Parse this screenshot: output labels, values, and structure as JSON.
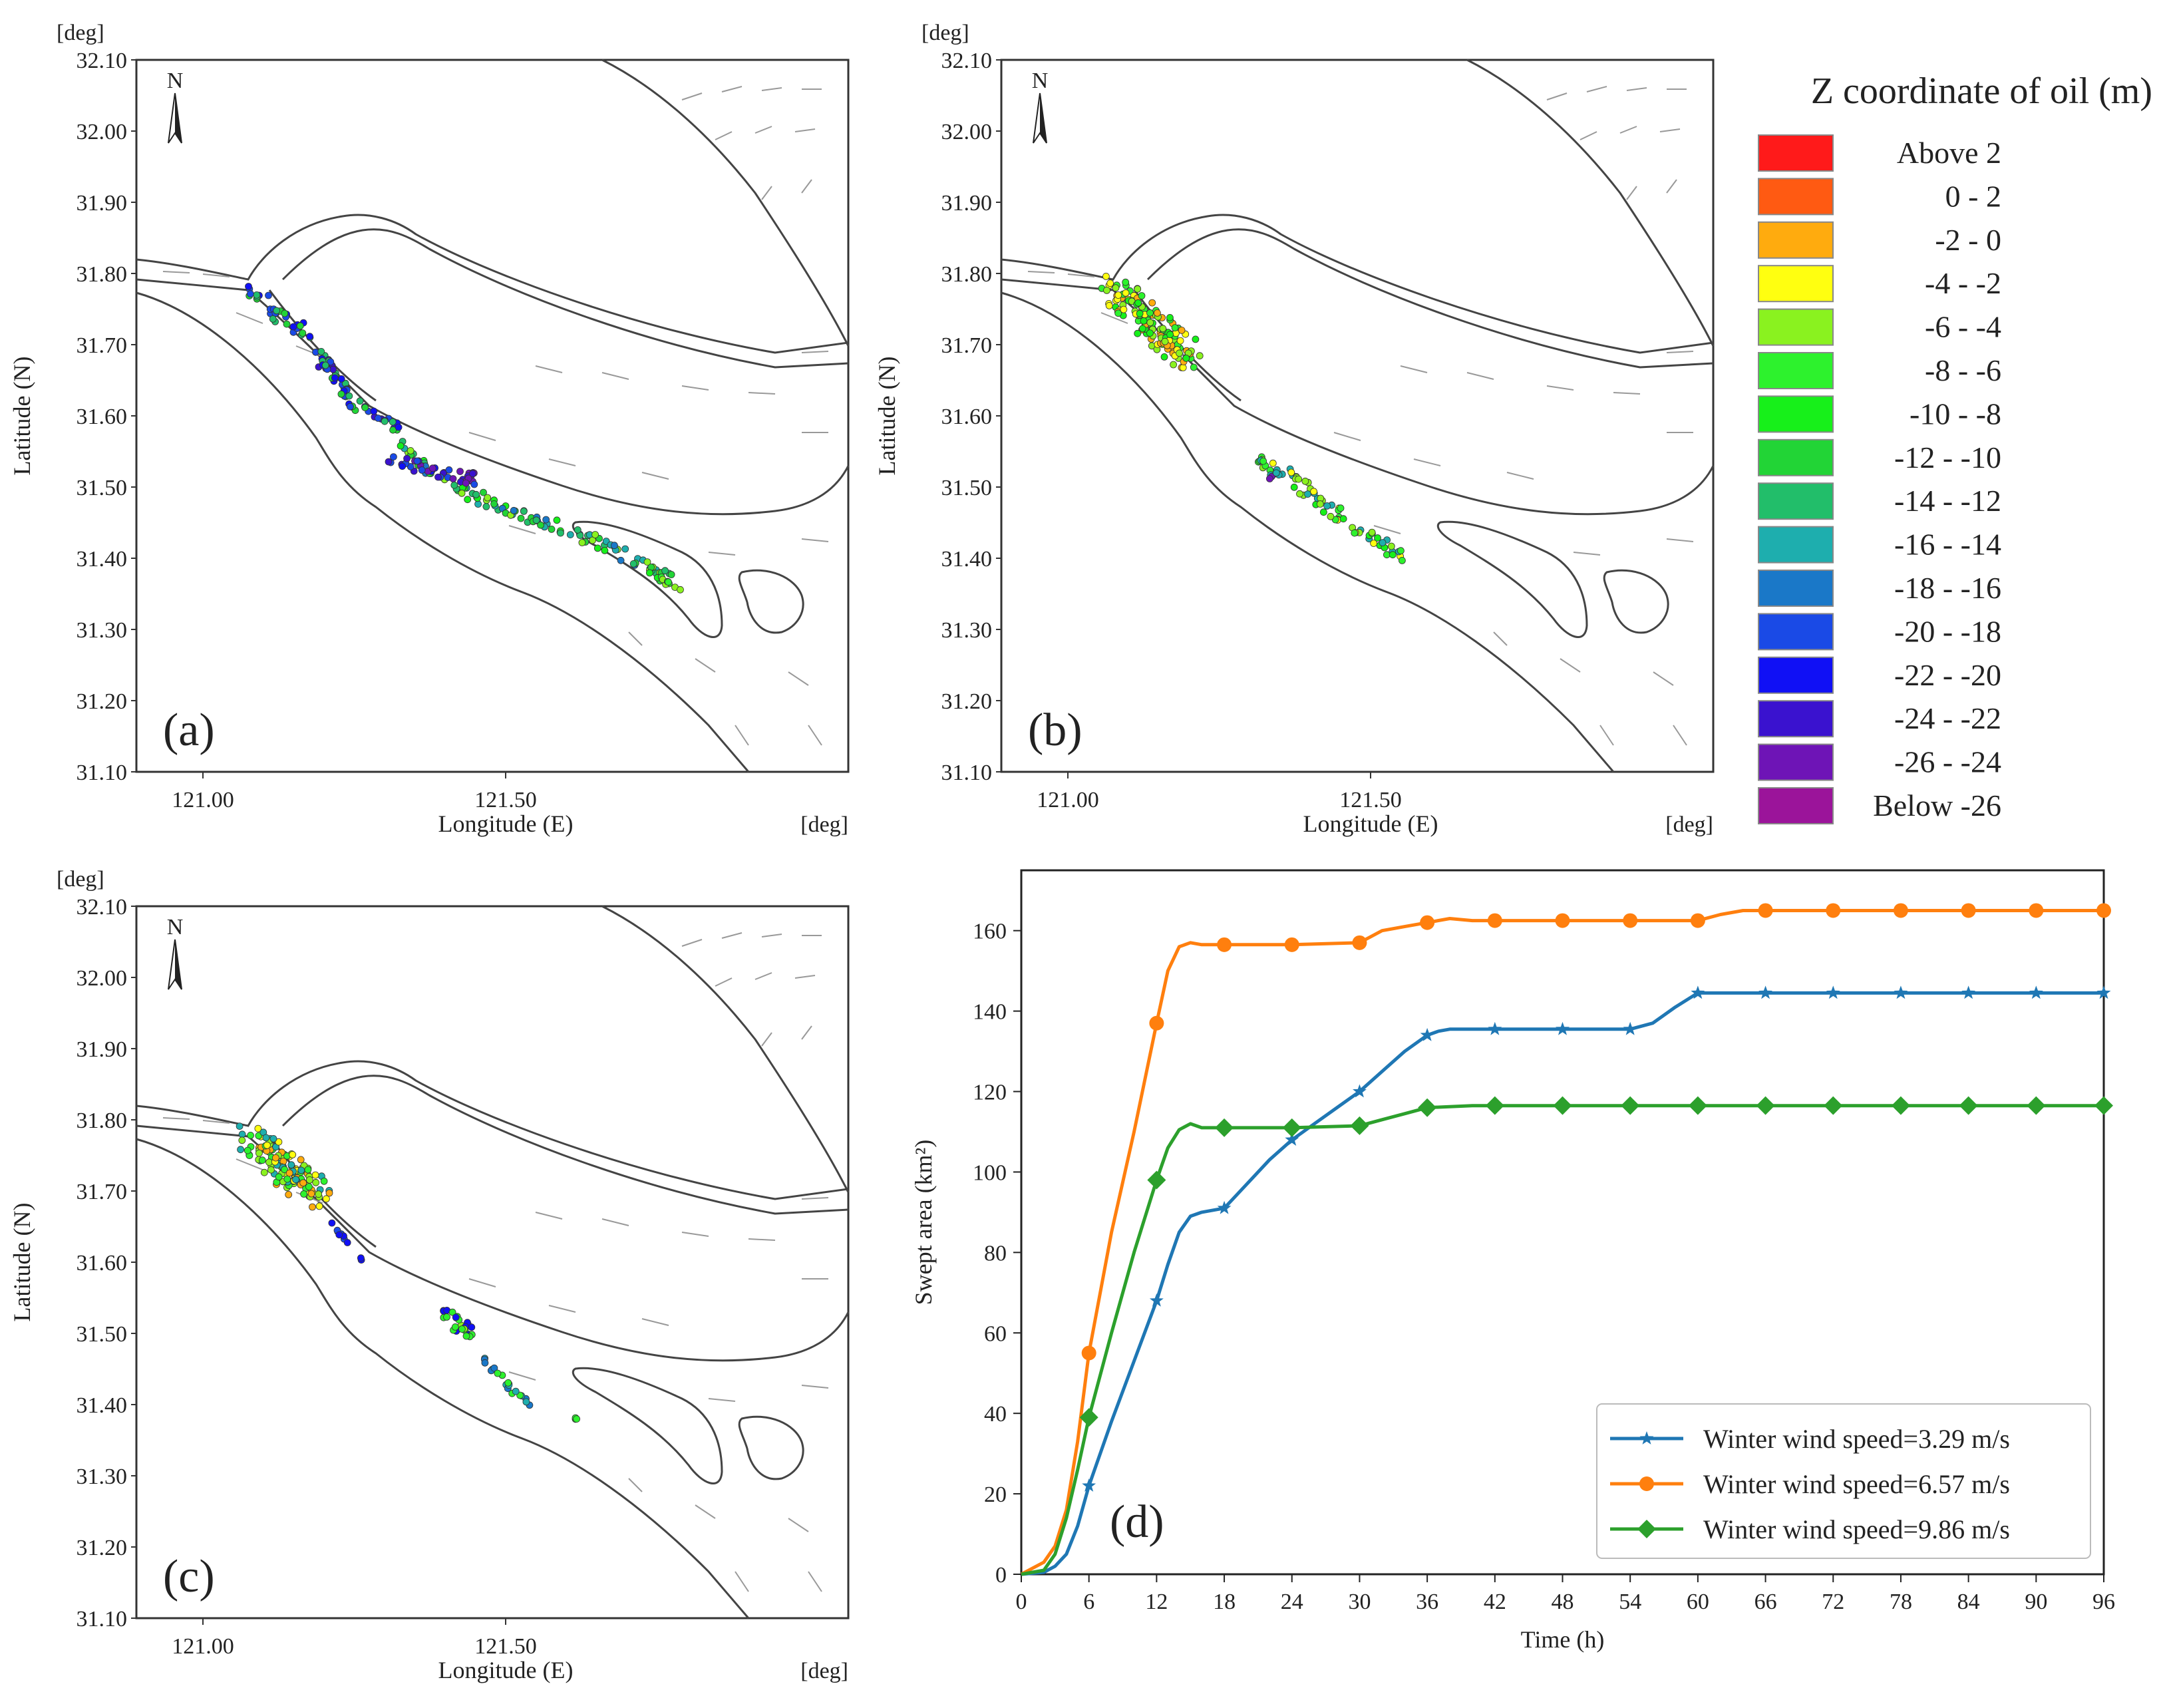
{
  "maps": {
    "lat_ticks": [
      "32.10",
      "32.00",
      "31.90",
      "31.80",
      "31.70",
      "31.60",
      "31.50",
      "31.40",
      "31.30",
      "31.20",
      "31.10"
    ],
    "lon_ticks": [
      "121.00",
      "121.50"
    ],
    "deg_label": "[deg]",
    "xlabel": "Longitude (E)",
    "ylabel": "Latitude (N)",
    "north": "N",
    "panels": [
      {
        "label": "(a)"
      },
      {
        "label": "(b)"
      },
      {
        "label": "(c)"
      }
    ]
  },
  "legend": {
    "title": "Z coordinate of oil (m)",
    "items": [
      {
        "label": "Above    2",
        "color": "#ff1a1a"
      },
      {
        "label": "0 -    2",
        "color": "#ff5a12"
      },
      {
        "label": "-2 -    0",
        "color": "#ffab0e"
      },
      {
        "label": "-4 -  -2",
        "color": "#ffff10"
      },
      {
        "label": "-6 -  -4",
        "color": "#8af21f"
      },
      {
        "label": "-8 -  -6",
        "color": "#2df22d"
      },
      {
        "label": "-10 -  -8",
        "color": "#17f01a"
      },
      {
        "label": "-12 - -10",
        "color": "#22d436"
      },
      {
        "label": "-14 - -12",
        "color": "#22be6a"
      },
      {
        "label": "-16 - -14",
        "color": "#1eaeae"
      },
      {
        "label": "-18 - -16",
        "color": "#1a78c8"
      },
      {
        "label": "-20 - -18",
        "color": "#1a4ae6"
      },
      {
        "label": "-22 - -20",
        "color": "#1010f5"
      },
      {
        "label": "-24 - -22",
        "color": "#3a12cf"
      },
      {
        "label": "-26 - -24",
        "color": "#6e14b6"
      },
      {
        "label": "Below -26",
        "color": "#9b149a"
      }
    ]
  },
  "chart_data": {
    "type": "line",
    "panel_label": "(d)",
    "xlabel": "Time (h)",
    "ylabel": "Swept area (km²)",
    "xlim": [
      0,
      96
    ],
    "ylim": [
      0,
      175
    ],
    "xticks": [
      0,
      6,
      12,
      18,
      24,
      30,
      36,
      42,
      48,
      54,
      60,
      66,
      72,
      78,
      84,
      90,
      96
    ],
    "yticks": [
      0,
      20,
      40,
      60,
      80,
      100,
      120,
      140,
      160
    ],
    "series": [
      {
        "name": "Winter wind speed=3.29 m/s",
        "color": "#1f77b4",
        "marker": "star",
        "x": [
          0,
          2,
          3,
          4,
          5,
          6,
          8,
          10,
          12,
          13,
          14,
          15,
          16,
          18,
          20,
          22,
          24,
          26,
          28,
          30,
          32,
          34,
          36,
          37,
          38,
          42,
          48,
          54,
          56,
          58,
          60,
          66,
          72,
          78,
          84,
          90,
          96
        ],
        "y": [
          0,
          0.5,
          2,
          5,
          12,
          22,
          38,
          53,
          68,
          77,
          85,
          89,
          90,
          91,
          97,
          103,
          108,
          112,
          116,
          120,
          125,
          130,
          134,
          135,
          135.5,
          135.5,
          135.5,
          135.5,
          137,
          141,
          144.5,
          144.5,
          144.5,
          144.5,
          144.5,
          144.5,
          144.5
        ],
        "marker_x": [
          6,
          12,
          18,
          24,
          30,
          36,
          42,
          48,
          54,
          60,
          66,
          72,
          78,
          84,
          90,
          96
        ],
        "marker_y": [
          22,
          68,
          91,
          108,
          120,
          134,
          135.5,
          135.5,
          135.5,
          144.5,
          144.5,
          144.5,
          144.5,
          144.5,
          144.5,
          144.5
        ]
      },
      {
        "name": "Winter wind speed=6.57 m/s",
        "color": "#ff7f0e",
        "marker": "circle",
        "x": [
          0,
          1,
          2,
          3,
          4,
          5,
          6,
          8,
          10,
          12,
          13,
          14,
          15,
          16,
          18,
          24,
          30,
          32,
          34,
          36,
          38,
          40,
          42,
          48,
          54,
          60,
          62,
          64,
          66,
          72,
          78,
          84,
          90,
          96
        ],
        "y": [
          0,
          1.5,
          3,
          7,
          16,
          33,
          55,
          85,
          110,
          137,
          150,
          156,
          157,
          156.5,
          156.5,
          156.5,
          157,
          160,
          161,
          162,
          163,
          162.5,
          162.5,
          162.5,
          162.5,
          162.5,
          164,
          165,
          165,
          165,
          165,
          165,
          165,
          165
        ],
        "marker_x": [
          6,
          12,
          18,
          24,
          30,
          36,
          42,
          48,
          54,
          60,
          66,
          72,
          78,
          84,
          90,
          96
        ],
        "marker_y": [
          55,
          137,
          156.5,
          156.5,
          157,
          162,
          162.5,
          162.5,
          162.5,
          162.5,
          165,
          165,
          165,
          165,
          165,
          165
        ]
      },
      {
        "name": "Winter wind speed=9.86 m/s",
        "color": "#2ca02c",
        "marker": "diamond",
        "x": [
          0,
          2,
          3,
          4,
          5,
          6,
          8,
          10,
          12,
          13,
          14,
          15,
          16,
          18,
          24,
          30,
          32,
          34,
          36,
          40,
          42,
          48,
          54,
          60,
          66,
          72,
          78,
          84,
          90,
          96
        ],
        "y": [
          0,
          1,
          5,
          14,
          26,
          39,
          60,
          80,
          98,
          106,
          110.5,
          112,
          111,
          111,
          111,
          111.5,
          113,
          114.5,
          116,
          116.5,
          116.5,
          116.5,
          116.5,
          116.5,
          116.5,
          116.5,
          116.5,
          116.5,
          116.5,
          116.5
        ],
        "marker_x": [
          6,
          12,
          18,
          24,
          30,
          36,
          42,
          48,
          54,
          60,
          66,
          72,
          78,
          84,
          90,
          96
        ],
        "marker_y": [
          39,
          98,
          111,
          111,
          111.5,
          116,
          116.5,
          116.5,
          116.5,
          116.5,
          116.5,
          116.5,
          116.5,
          116.5,
          116.5,
          116.5
        ]
      }
    ]
  }
}
